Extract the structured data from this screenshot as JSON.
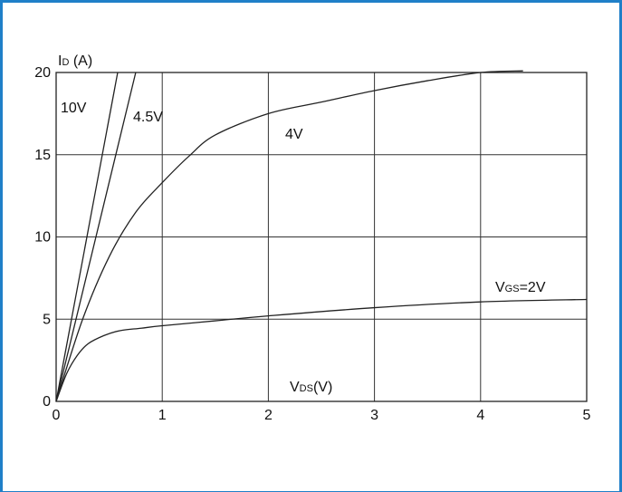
{
  "chart_data": {
    "type": "line",
    "title": "",
    "ylabel": {
      "main": "I",
      "sub": "D",
      "rest": " (A)"
    },
    "xlabel": {
      "main": "V",
      "sub": "DS",
      "rest": "(V)"
    },
    "xlim": [
      0,
      5
    ],
    "ylim": [
      0,
      20
    ],
    "xticks": [
      0,
      1,
      2,
      3,
      4,
      5
    ],
    "yticks": [
      0,
      5,
      10,
      15,
      20
    ],
    "grid": true,
    "series": [
      {
        "name": "10V",
        "label": {
          "main": "10V",
          "sub": "",
          "rest": ""
        },
        "x": [
          0,
          0.58
        ],
        "y": [
          0,
          20
        ]
      },
      {
        "name": "4.5V",
        "label": {
          "main": "4.5V",
          "sub": "",
          "rest": ""
        },
        "x": [
          0,
          0.75
        ],
        "y": [
          0,
          20
        ]
      },
      {
        "name": "4V",
        "label": {
          "main": "4V",
          "sub": "",
          "rest": ""
        },
        "x": [
          0,
          0.25,
          0.5,
          0.75,
          1.0,
          1.25,
          1.5,
          2.0,
          2.5,
          3.0,
          3.5,
          4.0,
          4.4
        ],
        "y": [
          0,
          5.0,
          8.8,
          11.5,
          13.3,
          14.9,
          16.2,
          17.5,
          18.2,
          18.9,
          19.5,
          20.0,
          20.1
        ]
      },
      {
        "name": "VGS=2V",
        "label": {
          "main": "V",
          "sub": "GS",
          "rest": "=2V"
        },
        "x": [
          0,
          0.1,
          0.2,
          0.3,
          0.45,
          0.6,
          0.8,
          1.0,
          1.5,
          2.0,
          3.0,
          4.0,
          5.0
        ],
        "y": [
          0,
          1.7,
          2.8,
          3.5,
          4.0,
          4.3,
          4.45,
          4.6,
          4.9,
          5.2,
          5.7,
          6.05,
          6.2
        ]
      }
    ]
  }
}
